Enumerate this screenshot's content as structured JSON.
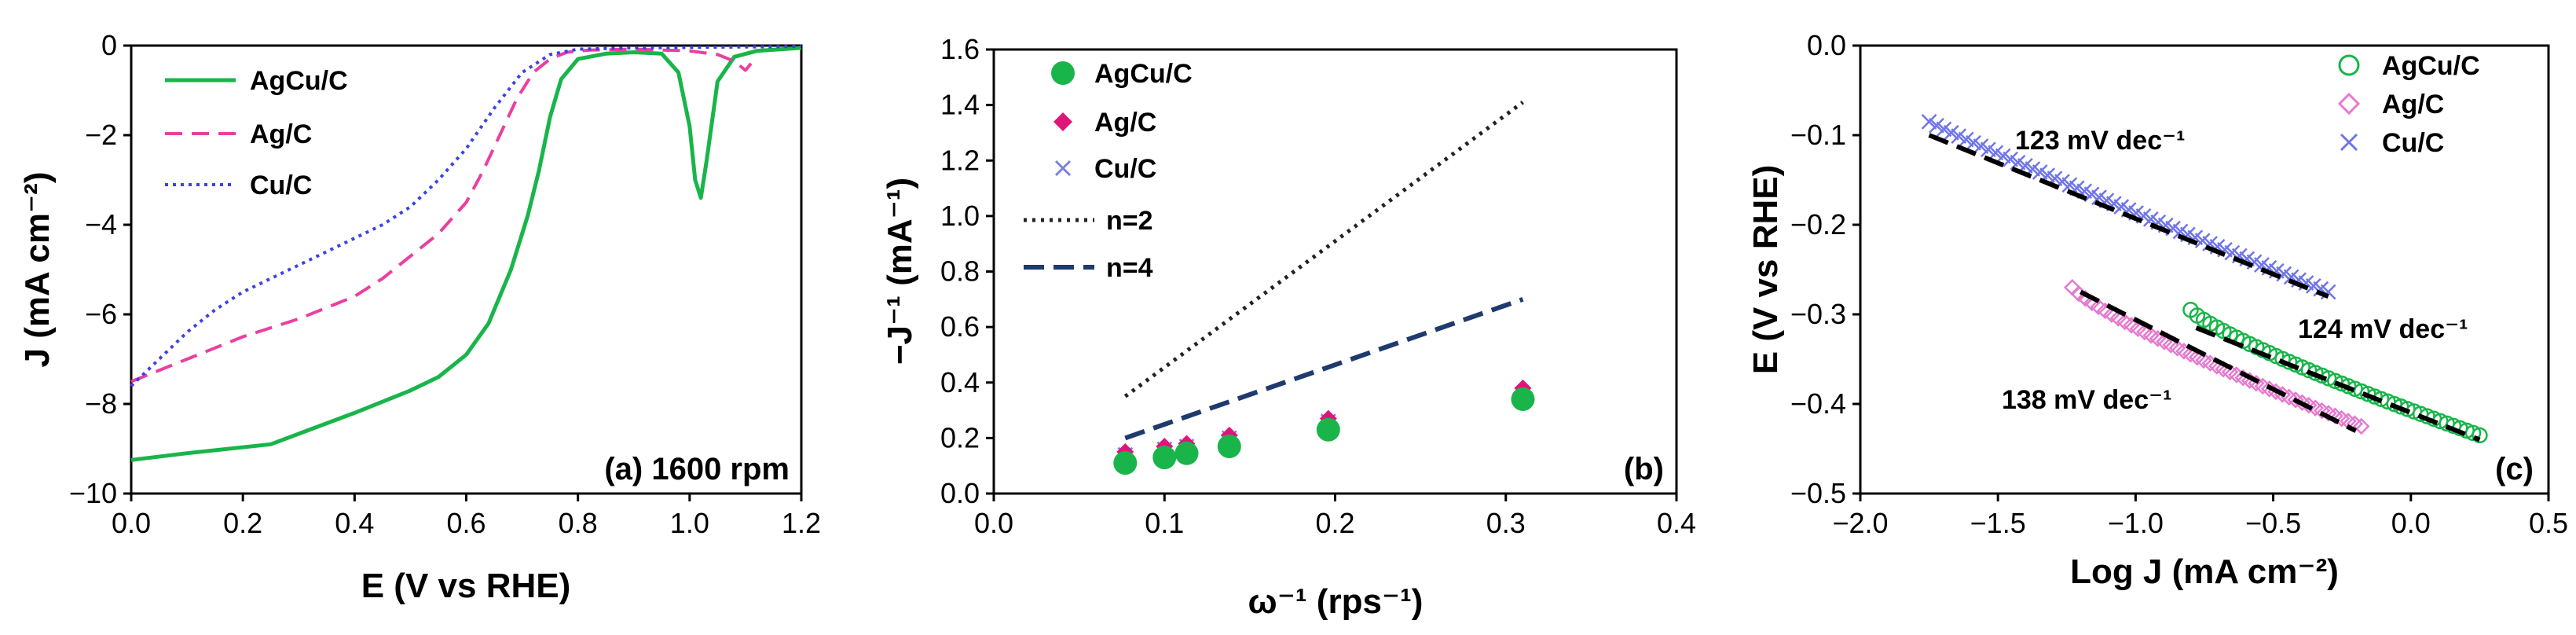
{
  "chart_data": [
    {
      "id": "a",
      "type": "line",
      "panel_label": "(a) 1600 rpm",
      "xlabel": "E (V vs RHE)",
      "ylabel": "J (mA cm⁻²)",
      "xlim": [
        0.0,
        1.2
      ],
      "ylim": [
        -10,
        0
      ],
      "xticks": [
        0.0,
        0.2,
        0.4,
        0.6,
        0.8,
        1.0,
        1.2
      ],
      "xtick_labels": [
        "0.0",
        "0.2",
        "0.4",
        "0.6",
        "0.8",
        "1.0",
        "1.2"
      ],
      "yticks": [
        0,
        -2,
        -4,
        -6,
        -8,
        -10
      ],
      "ytick_labels": [
        "0",
        "−2",
        "−4",
        "−6",
        "−8",
        "−10"
      ],
      "series": [
        {
          "name": "AgCu/C",
          "color": "#19b54a",
          "style": "solid",
          "x": [
            0.0,
            0.1,
            0.25,
            0.4,
            0.5,
            0.55,
            0.6,
            0.64,
            0.68,
            0.71,
            0.73,
            0.75,
            0.77,
            0.8,
            0.85,
            0.9,
            0.95,
            0.98,
            1.0,
            1.01,
            1.02,
            1.03,
            1.05,
            1.08,
            1.12,
            1.2
          ],
          "y": [
            -9.25,
            -9.1,
            -8.9,
            -8.2,
            -7.7,
            -7.4,
            -6.9,
            -6.2,
            -5.0,
            -3.8,
            -2.8,
            -1.6,
            -0.75,
            -0.3,
            -0.18,
            -0.15,
            -0.18,
            -0.6,
            -1.8,
            -3.0,
            -3.4,
            -2.6,
            -0.8,
            -0.25,
            -0.12,
            -0.05
          ]
        },
        {
          "name": "Ag/C",
          "color": "#ea3fa0",
          "style": "dashed",
          "x": [
            0.0,
            0.1,
            0.2,
            0.3,
            0.4,
            0.45,
            0.5,
            0.55,
            0.6,
            0.63,
            0.66,
            0.69,
            0.72,
            0.75,
            0.78,
            0.82,
            0.9,
            1.0,
            1.05,
            1.08,
            1.1,
            1.11
          ],
          "y": [
            -7.5,
            -7.0,
            -6.5,
            -6.1,
            -5.6,
            -5.2,
            -4.7,
            -4.2,
            -3.5,
            -2.8,
            -2.0,
            -1.2,
            -0.6,
            -0.3,
            -0.15,
            -0.1,
            -0.08,
            -0.12,
            -0.2,
            -0.35,
            -0.55,
            -0.4
          ]
        },
        {
          "name": "Cu/C",
          "color": "#3a42e8",
          "style": "dotted",
          "x": [
            0.0,
            0.05,
            0.1,
            0.15,
            0.2,
            0.25,
            0.3,
            0.35,
            0.4,
            0.45,
            0.5,
            0.55,
            0.6,
            0.65,
            0.7,
            0.75,
            0.8,
            0.9,
            1.0,
            1.1,
            1.2
          ],
          "y": [
            -7.6,
            -7.0,
            -6.4,
            -5.9,
            -5.5,
            -5.2,
            -4.9,
            -4.6,
            -4.3,
            -4.0,
            -3.6,
            -3.0,
            -2.3,
            -1.4,
            -0.6,
            -0.2,
            -0.08,
            -0.05,
            -0.04,
            -0.03,
            -0.02
          ]
        }
      ],
      "legend": "top-left"
    },
    {
      "id": "b",
      "type": "scatter",
      "panel_label": "(b)",
      "xlabel": "ω⁻¹ (rps⁻¹)",
      "ylabel": "−J⁻¹ (mA⁻¹)",
      "xlim": [
        0.0,
        0.4
      ],
      "ylim": [
        0.0,
        1.6
      ],
      "xticks": [
        0.0,
        0.1,
        0.2,
        0.3,
        0.4
      ],
      "xtick_labels": [
        "0.0",
        "0.1",
        "0.2",
        "0.3",
        "0.4"
      ],
      "yticks": [
        0.0,
        0.2,
        0.4,
        0.6,
        0.8,
        1.0,
        1.2,
        1.4,
        1.6
      ],
      "ytick_labels": [
        "0.0",
        "0.2",
        "0.4",
        "0.6",
        "0.8",
        "1.0",
        "1.2",
        "1.4",
        "1.6"
      ],
      "series": [
        {
          "name": "AgCu/C",
          "color": "#19b54a",
          "marker": "circle",
          "x": [
            0.077,
            0.1,
            0.113,
            0.138,
            0.196,
            0.31
          ],
          "y": [
            0.11,
            0.13,
            0.145,
            0.17,
            0.23,
            0.34
          ]
        },
        {
          "name": "Ag/C",
          "color": "#e0157a",
          "marker": "diamond",
          "x": [
            0.077,
            0.1,
            0.113,
            0.138,
            0.196,
            0.31
          ],
          "y": [
            0.15,
            0.17,
            0.18,
            0.21,
            0.27,
            0.38
          ]
        },
        {
          "name": "Cu/C",
          "color": "#7b80e0",
          "marker": "x",
          "x": [
            0.077,
            0.1,
            0.113,
            0.138,
            0.196,
            0.31
          ],
          "y": [
            0.14,
            0.16,
            0.17,
            0.2,
            0.26,
            0.34
          ]
        }
      ],
      "lines": [
        {
          "name": "n=2",
          "color": "#222222",
          "style": "dotted",
          "x": [
            0.077,
            0.31
          ],
          "y": [
            0.35,
            1.41
          ]
        },
        {
          "name": "n=4",
          "color": "#1f3a6e",
          "style": "dashed",
          "x": [
            0.077,
            0.31
          ],
          "y": [
            0.2,
            0.7
          ]
        }
      ],
      "legend": "top-left"
    },
    {
      "id": "c",
      "type": "scatter",
      "panel_label": "(c)",
      "xlabel": "Log J (mA cm⁻²)",
      "ylabel": "E (V vs RHE)",
      "xlim": [
        -2.0,
        0.5
      ],
      "ylim": [
        -0.5,
        0.0
      ],
      "xticks": [
        -2.0,
        -1.5,
        -1.0,
        -0.5,
        0.0,
        0.5
      ],
      "xtick_labels": [
        "−2.0",
        "−1.5",
        "−1.0",
        "−0.5",
        "0.0",
        "0.5"
      ],
      "yticks": [
        0.0,
        -0.1,
        -0.2,
        -0.3,
        -0.4,
        -0.5
      ],
      "ytick_labels": [
        "0.0",
        "−0.1",
        "−0.2",
        "−0.3",
        "−0.4",
        "−0.5"
      ],
      "series": [
        {
          "name": "AgCu/C",
          "color": "#19b54a",
          "marker": "open-circle",
          "x_range": [
            -0.8,
            0.25
          ],
          "y_range": [
            -0.295,
            -0.435
          ]
        },
        {
          "name": "Ag/C",
          "color": "#e67ad0",
          "marker": "open-diamond",
          "x_range": [
            -1.23,
            -0.18
          ],
          "y_range": [
            -0.27,
            -0.425
          ]
        },
        {
          "name": "Cu/C",
          "color": "#6f75e8",
          "marker": "x",
          "x_range": [
            -1.75,
            -0.3
          ],
          "y_range": [
            -0.085,
            -0.275
          ]
        }
      ],
      "fits": [
        {
          "name": "Cu/C fit",
          "x": [
            -1.75,
            -0.3
          ],
          "y": [
            -0.1,
            -0.28
          ]
        },
        {
          "name": "Ag/C fit",
          "x": [
            -1.2,
            -0.2
          ],
          "y": [
            -0.275,
            -0.43
          ]
        },
        {
          "name": "AgCu/C fit",
          "x": [
            -0.78,
            0.25
          ],
          "y": [
            -0.315,
            -0.44
          ]
        }
      ],
      "annotations": [
        "123 mV dec⁻¹",
        "124 mV dec⁻¹",
        "138 mV dec⁻¹"
      ],
      "legend": "top-right"
    }
  ]
}
